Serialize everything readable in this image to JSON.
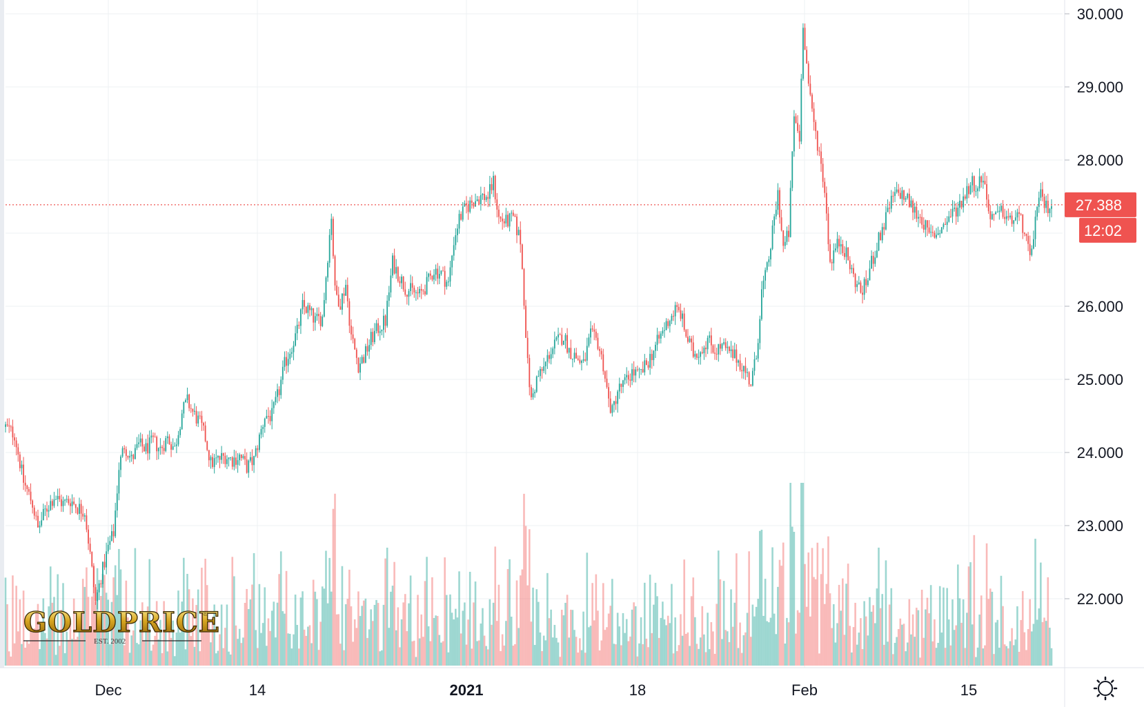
{
  "chart_data": {
    "type": "candlestick",
    "ylim": [
      21.0,
      30.2
    ],
    "y_ticks": [
      "30.000",
      "29.000",
      "28.000",
      "26.000",
      "25.000",
      "24.000",
      "23.000",
      "22.000"
    ],
    "x_ticks": [
      {
        "label": "Dec",
        "bold": false
      },
      {
        "label": "14",
        "bold": false
      },
      {
        "label": "2021",
        "bold": true
      },
      {
        "label": "18",
        "bold": false
      },
      {
        "label": "Feb",
        "bold": false
      },
      {
        "label": "15",
        "bold": false
      }
    ],
    "last_price": 27.388,
    "last_price_label": "27.388",
    "countdown_label": "12:02",
    "grid": true,
    "price_path": [
      [
        0,
        24.35
      ],
      [
        5,
        24.25
      ],
      [
        10,
        23.6
      ],
      [
        15,
        23.3
      ],
      [
        18,
        22.95
      ],
      [
        22,
        23.2
      ],
      [
        27,
        23.4
      ],
      [
        32,
        23.3
      ],
      [
        36,
        23.35
      ],
      [
        40,
        23.25
      ],
      [
        44,
        23.2
      ],
      [
        47,
        22.6
      ],
      [
        50,
        21.95
      ],
      [
        53,
        22.3
      ],
      [
        57,
        22.7
      ],
      [
        60,
        22.9
      ],
      [
        63,
        23.8
      ],
      [
        66,
        24.1
      ],
      [
        70,
        23.9
      ],
      [
        74,
        24.1
      ],
      [
        78,
        24.05
      ],
      [
        82,
        24.15
      ],
      [
        86,
        24.05
      ],
      [
        90,
        24.2
      ],
      [
        94,
        24.05
      ],
      [
        98,
        24.55
      ],
      [
        101,
        24.7
      ],
      [
        104,
        24.55
      ],
      [
        108,
        24.4
      ],
      [
        111,
        24.2
      ],
      [
        114,
        23.85
      ],
      [
        118,
        23.9
      ],
      [
        122,
        23.95
      ],
      [
        126,
        23.9
      ],
      [
        130,
        23.95
      ],
      [
        134,
        23.8
      ],
      [
        138,
        23.9
      ],
      [
        141,
        24.2
      ],
      [
        144,
        24.5
      ],
      [
        148,
        24.5
      ],
      [
        152,
        24.85
      ],
      [
        155,
        25.2
      ],
      [
        158,
        25.4
      ],
      [
        162,
        25.65
      ],
      [
        165,
        26.0
      ],
      [
        168,
        25.95
      ],
      [
        172,
        25.8
      ],
      [
        176,
        25.85
      ],
      [
        179,
        26.7
      ],
      [
        181,
        27.25
      ],
      [
        183,
        26.2
      ],
      [
        186,
        26.05
      ],
      [
        189,
        26.3
      ],
      [
        192,
        25.6
      ],
      [
        196,
        25.2
      ],
      [
        199,
        25.3
      ],
      [
        203,
        25.55
      ],
      [
        207,
        25.7
      ],
      [
        211,
        25.8
      ],
      [
        215,
        26.6
      ],
      [
        218,
        26.45
      ],
      [
        222,
        26.25
      ],
      [
        226,
        26.2
      ],
      [
        230,
        26.15
      ],
      [
        234,
        26.3
      ],
      [
        238,
        26.5
      ],
      [
        242,
        26.45
      ],
      [
        246,
        26.3
      ],
      [
        249,
        26.9
      ],
      [
        252,
        27.2
      ],
      [
        256,
        27.35
      ],
      [
        260,
        27.45
      ],
      [
        264,
        27.5
      ],
      [
        268,
        27.5
      ],
      [
        271,
        27.7
      ],
      [
        274,
        27.2
      ],
      [
        278,
        27.15
      ],
      [
        282,
        27.2
      ],
      [
        286,
        26.9
      ],
      [
        288,
        26.1
      ],
      [
        290,
        25.2
      ],
      [
        292,
        24.7
      ],
      [
        295,
        25.0
      ],
      [
        299,
        25.15
      ],
      [
        302,
        25.35
      ],
      [
        306,
        25.5
      ],
      [
        310,
        25.6
      ],
      [
        313,
        25.4
      ],
      [
        317,
        25.3
      ],
      [
        321,
        25.2
      ],
      [
        325,
        25.6
      ],
      [
        329,
        25.5
      ],
      [
        332,
        25.2
      ],
      [
        335,
        24.7
      ],
      [
        337,
        24.55
      ],
      [
        340,
        24.85
      ],
      [
        344,
        24.95
      ],
      [
        348,
        25.1
      ],
      [
        352,
        25.05
      ],
      [
        356,
        25.2
      ],
      [
        360,
        25.4
      ],
      [
        364,
        25.6
      ],
      [
        368,
        25.8
      ],
      [
        372,
        25.95
      ],
      [
        375,
        25.9
      ],
      [
        378,
        25.6
      ],
      [
        382,
        25.35
      ],
      [
        386,
        25.4
      ],
      [
        390,
        25.55
      ],
      [
        394,
        25.4
      ],
      [
        398,
        25.45
      ],
      [
        402,
        25.35
      ],
      [
        406,
        25.3
      ],
      [
        410,
        25.15
      ],
      [
        414,
        24.95
      ],
      [
        417,
        25.3
      ],
      [
        420,
        26.2
      ],
      [
        423,
        26.5
      ],
      [
        426,
        27.0
      ],
      [
        429,
        27.55
      ],
      [
        432,
        26.8
      ],
      [
        435,
        27.0
      ],
      [
        438,
        28.6
      ],
      [
        441,
        28.3
      ],
      [
        443,
        29.9
      ],
      [
        445,
        29.3
      ],
      [
        447,
        28.8
      ],
      [
        449,
        28.5
      ],
      [
        452,
        28.1
      ],
      [
        455,
        27.6
      ],
      [
        458,
        26.6
      ],
      [
        461,
        26.8
      ],
      [
        464,
        26.9
      ],
      [
        467,
        26.7
      ],
      [
        471,
        26.4
      ],
      [
        475,
        26.2
      ],
      [
        478,
        26.3
      ],
      [
        481,
        26.6
      ],
      [
        485,
        26.9
      ],
      [
        489,
        27.2
      ],
      [
        493,
        27.5
      ],
      [
        497,
        27.55
      ],
      [
        501,
        27.45
      ],
      [
        505,
        27.3
      ],
      [
        509,
        27.2
      ],
      [
        513,
        26.95
      ],
      [
        517,
        27.0
      ],
      [
        521,
        27.1
      ],
      [
        525,
        27.25
      ],
      [
        529,
        27.35
      ],
      [
        533,
        27.55
      ],
      [
        537,
        27.7
      ],
      [
        540,
        27.65
      ],
      [
        543,
        27.8
      ],
      [
        546,
        27.3
      ],
      [
        550,
        27.2
      ],
      [
        554,
        27.3
      ],
      [
        558,
        27.15
      ],
      [
        562,
        27.25
      ],
      [
        566,
        27.05
      ],
      [
        569,
        26.6
      ],
      [
        572,
        27.2
      ],
      [
        575,
        27.5
      ],
      [
        578,
        27.35
      ],
      [
        581,
        27.4
      ]
    ]
  }
}
